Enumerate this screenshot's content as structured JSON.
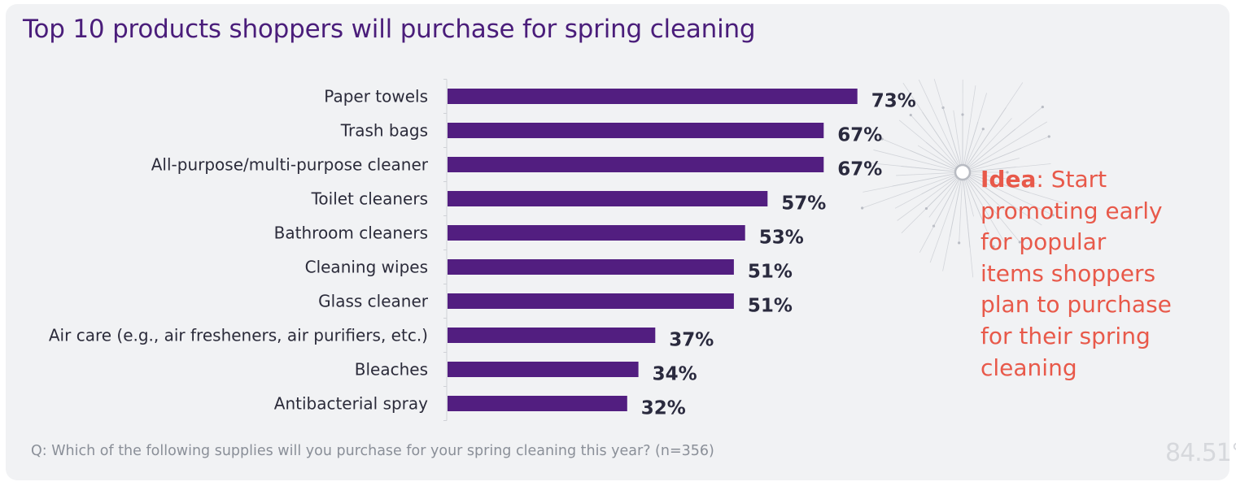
{
  "title": "Top 10 products shoppers will purchase for spring cleaning",
  "footnote": "Q: Which of the following supplies will you purchase for your spring cleaning this year? (n=356)",
  "callout": {
    "lead": "Idea",
    "text": ": Start promoting early for popular items shoppers plan to purchase for their spring cleaning"
  },
  "logo": "84.51°",
  "colors": {
    "bar": "#521e80",
    "title": "#4a1d7a",
    "value_label": "#2a2a3e",
    "callout": "#e8594a",
    "background": "#f1f2f4"
  },
  "chart_data": {
    "type": "bar",
    "orientation": "horizontal",
    "categories": [
      "Paper towels",
      "Trash bags",
      "All-purpose/multi-purpose cleaner",
      "Toilet cleaners",
      "Bathroom cleaners",
      "Cleaning wipes",
      "Glass cleaner",
      "Air care (e.g., air fresheners, air purifiers, etc.)",
      "Bleaches",
      "Antibacterial spray"
    ],
    "values": [
      73,
      67,
      67,
      57,
      53,
      51,
      51,
      37,
      34,
      32
    ],
    "value_labels": [
      "73%",
      "67%",
      "67%",
      "57%",
      "53%",
      "51%",
      "51%",
      "37%",
      "34%",
      "32%"
    ],
    "xlim": [
      0,
      100
    ],
    "grid": false,
    "legend": "none"
  }
}
